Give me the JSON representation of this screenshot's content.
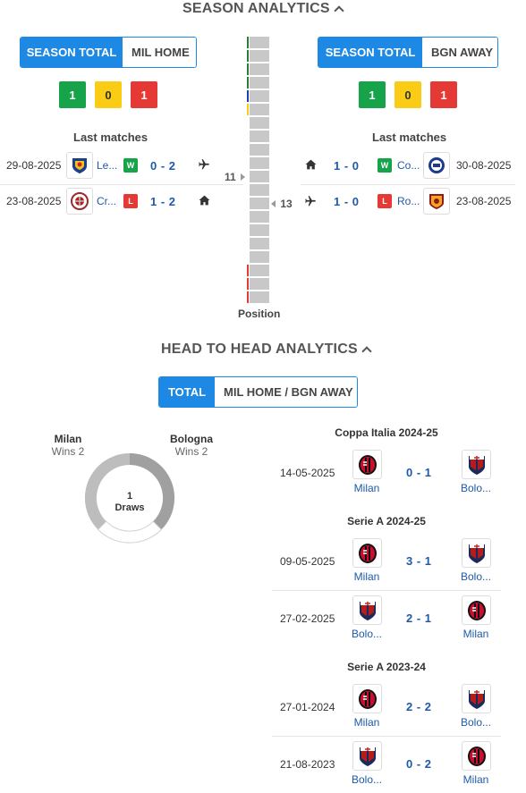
{
  "season": {
    "title": "SEASON ANALYTICS",
    "home_tabs": [
      "SEASON TOTAL",
      "MIL HOME"
    ],
    "away_tabs": [
      "SEASON TOTAL",
      "BGN AWAY"
    ],
    "home_record": {
      "w": "1",
      "d": "0",
      "l": "1"
    },
    "away_record": {
      "w": "1",
      "d": "0",
      "l": "1"
    },
    "last_matches_label": "Last matches",
    "position_label": "Position",
    "home_position": "11",
    "away_position": "13",
    "home_matches": [
      {
        "date": "29-08-2025",
        "team": "Le...",
        "result": "W",
        "score": "0 - 2",
        "venue": "plane-icon"
      },
      {
        "date": "23-08-2025",
        "team": "Cr...",
        "result": "L",
        "score": "1 - 2",
        "venue": "home-icon"
      }
    ],
    "away_matches": [
      {
        "date": "30-08-2025",
        "team": "Co...",
        "result": "W",
        "score": "1 - 0",
        "venue": "home-icon"
      },
      {
        "date": "23-08-2025",
        "team": "Ro...",
        "result": "L",
        "score": "1 - 0",
        "venue": "plane-icon"
      }
    ]
  },
  "h2h": {
    "title": "HEAD TO HEAD ANALYTICS",
    "tabs": [
      "TOTAL",
      "MIL HOME / BGN AWAY"
    ],
    "home_name": "Milan",
    "home_wins": "Wins 2",
    "away_name": "Bologna",
    "away_wins": "Wins 2",
    "draws_count": "1",
    "draws_label": "Draws",
    "competitions": [
      {
        "name": "Coppa Italia 2024-25",
        "matches": [
          {
            "date": "14-05-2025",
            "home": "Milan",
            "away": "Bolo...",
            "score": "0 - 1"
          }
        ]
      },
      {
        "name": "Serie A 2024-25",
        "matches": [
          {
            "date": "09-05-2025",
            "home": "Milan",
            "away": "Bolo...",
            "score": "3 - 1"
          },
          {
            "date": "27-02-2025",
            "home": "Bolo...",
            "away": "Milan",
            "score": "2 - 1"
          }
        ]
      },
      {
        "name": "Serie A 2023-24",
        "matches": [
          {
            "date": "27-01-2024",
            "home": "Milan",
            "away": "Bolo...",
            "score": "2 - 2"
          },
          {
            "date": "21-08-2023",
            "home": "Bolo...",
            "away": "Milan",
            "score": "0 - 2"
          }
        ]
      }
    ]
  },
  "colors": {
    "accent": "#1e88e5",
    "win": "#16a34a",
    "draw": "#facc15",
    "loss": "#e53935",
    "link": "#1e5aa8"
  }
}
